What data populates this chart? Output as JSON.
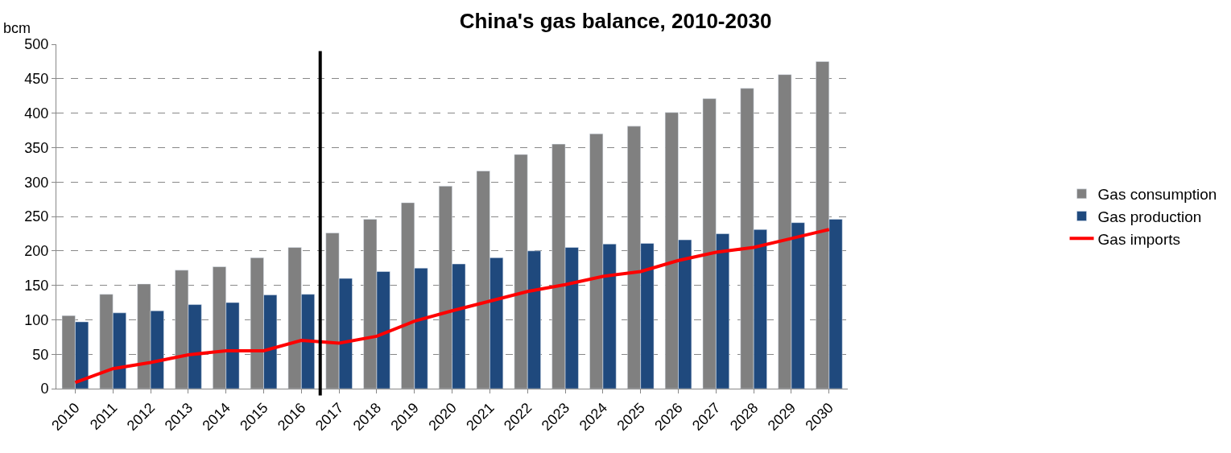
{
  "chart_data": {
    "type": "bar",
    "title": "China's gas balance, 2010-2030",
    "ylabel": "bcm",
    "x": [
      2010,
      2011,
      2012,
      2013,
      2014,
      2015,
      2016,
      2017,
      2018,
      2019,
      2020,
      2021,
      2022,
      2023,
      2024,
      2025,
      2026,
      2027,
      2028,
      2029,
      2030
    ],
    "xlim": [
      2009.5,
      2030.5
    ],
    "xticks": [
      2010,
      2011,
      2012,
      2013,
      2014,
      2015,
      2016,
      2017,
      2018,
      2019,
      2020,
      2021,
      2022,
      2023,
      2024,
      2025,
      2026,
      2027,
      2028,
      2029,
      2030
    ],
    "ylim": [
      0,
      500
    ],
    "yticks": [
      0,
      50,
      100,
      150,
      200,
      250,
      300,
      350,
      400,
      450,
      500
    ],
    "series": [
      {
        "name": "Gas consumption",
        "color": "#808080",
        "values": [
          106,
          137,
          152,
          172,
          177,
          190,
          205,
          226,
          246,
          270,
          294,
          316,
          340,
          355,
          370,
          381,
          401,
          421,
          436,
          456,
          475
        ]
      },
      {
        "name": "Gas production",
        "color": "#1f497d",
        "values": [
          97,
          110,
          113,
          122,
          125,
          136,
          137,
          160,
          170,
          175,
          181,
          190,
          200,
          205,
          210,
          211,
          216,
          225,
          231,
          241,
          246
        ]
      },
      {
        "name": "Gas imports",
        "type": "line",
        "color": "#ff0000",
        "marker": "none",
        "line_style": "solid",
        "values": [
          9,
          29,
          38,
          49,
          55,
          55,
          70,
          66,
          76,
          98,
          113,
          127,
          141,
          151,
          163,
          170,
          186,
          198,
          205,
          218,
          231
        ]
      }
    ],
    "ref_lines": [
      {
        "axis": "x",
        "value": 2016.5,
        "color": "#000000"
      }
    ],
    "grid": "y",
    "legend": "right"
  }
}
